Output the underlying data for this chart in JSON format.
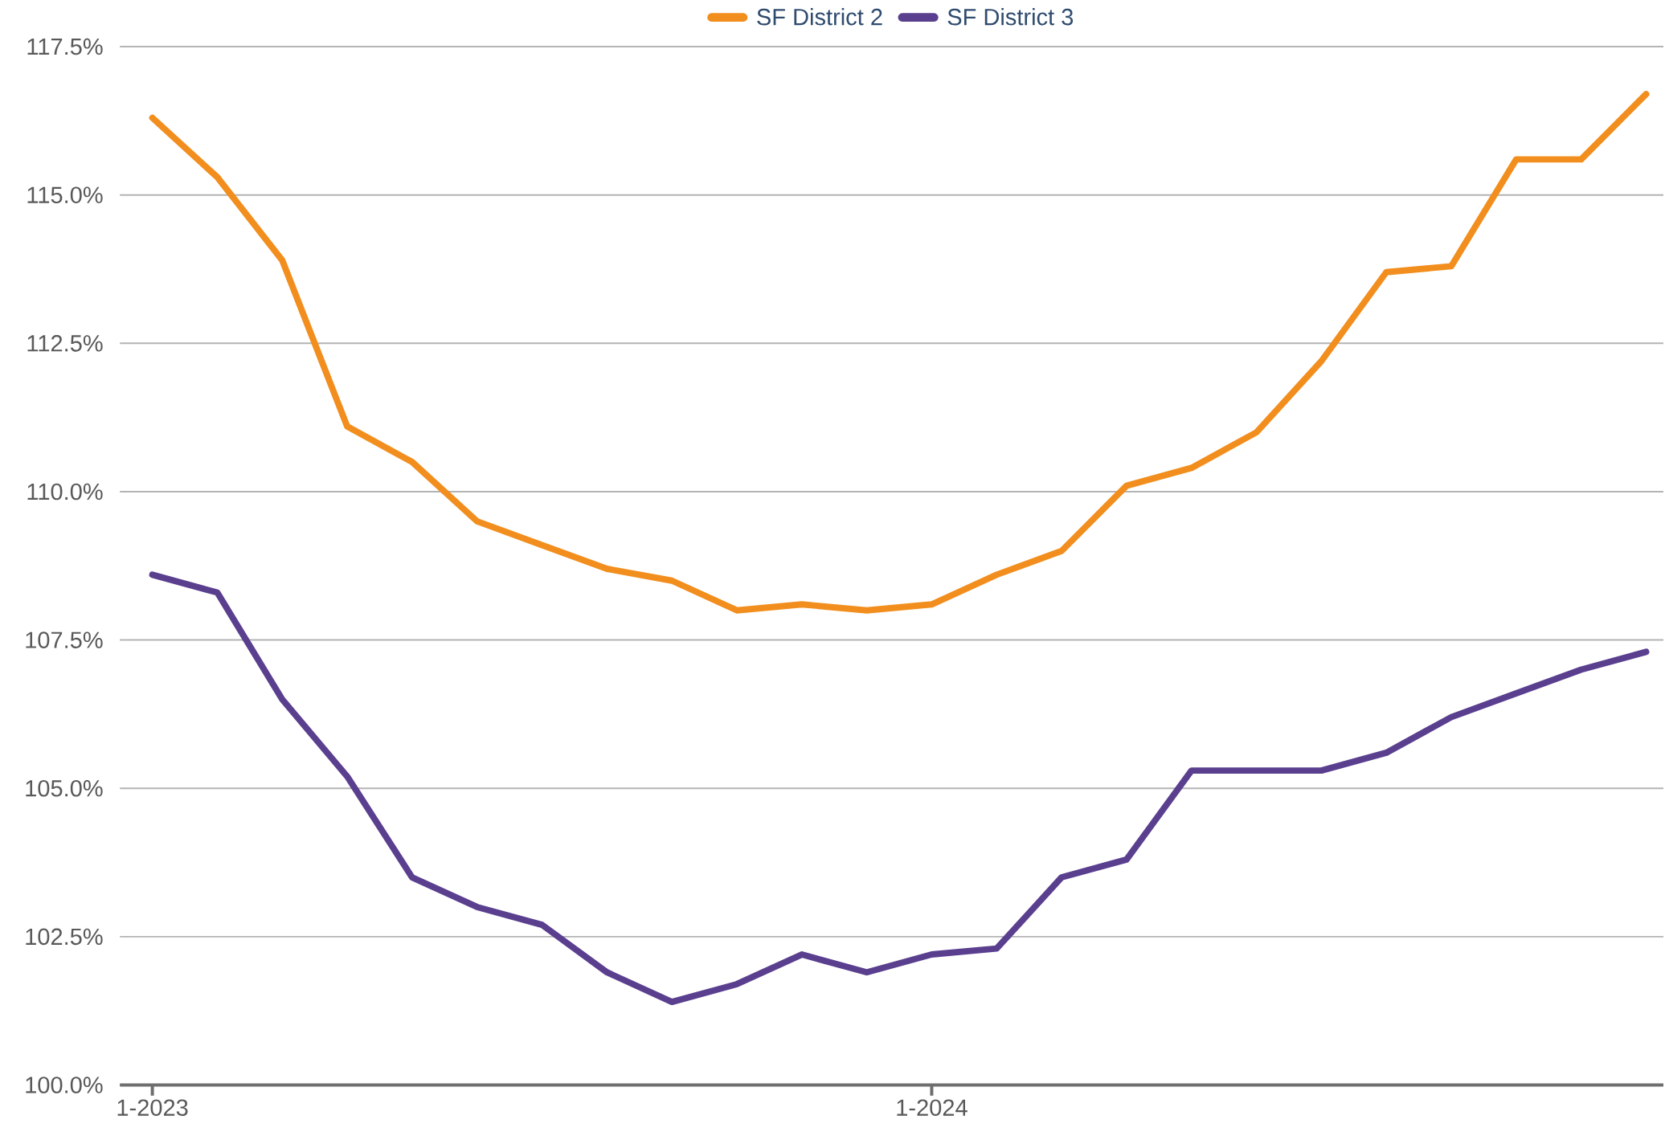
{
  "chart_data": {
    "type": "line",
    "x": [
      "2023-01",
      "2023-02",
      "2023-03",
      "2023-04",
      "2023-05",
      "2023-06",
      "2023-07",
      "2023-08",
      "2023-09",
      "2023-10",
      "2023-11",
      "2023-12",
      "2024-01",
      "2024-02",
      "2024-03",
      "2024-04",
      "2024-05",
      "2024-06",
      "2024-07",
      "2024-08",
      "2024-09",
      "2024-10",
      "2024-11",
      "2024-12"
    ],
    "series": [
      {
        "name": "SF District 2",
        "color": "#f28e1e",
        "values": [
          116.3,
          115.3,
          113.9,
          111.1,
          110.5,
          109.5,
          109.1,
          108.7,
          108.5,
          108.0,
          108.1,
          108.0,
          108.1,
          108.6,
          109.0,
          110.1,
          110.4,
          111.0,
          112.2,
          113.7,
          113.8,
          115.6,
          115.6,
          116.7
        ]
      },
      {
        "name": "SF District 3",
        "color": "#5a3f8f",
        "values": [
          108.6,
          108.3,
          106.5,
          105.2,
          103.5,
          103.0,
          102.7,
          101.9,
          101.4,
          101.7,
          102.2,
          101.9,
          102.2,
          102.3,
          103.5,
          103.8,
          105.3,
          105.3,
          105.3,
          105.6,
          106.2,
          106.6,
          107.0,
          107.3
        ]
      }
    ],
    "xlim": [
      "2022-12-16",
      "2024-12-09"
    ],
    "xticks": [
      {
        "value": "2023-01",
        "label": "1-2023"
      },
      {
        "value": "2024-01",
        "label": "1-2024"
      }
    ],
    "ylim": [
      100,
      117.5
    ],
    "yticks": [
      {
        "value": 100,
        "label": "100.0%"
      },
      {
        "value": 102.5,
        "label": "102.5%"
      },
      {
        "value": 105,
        "label": "105.0%"
      },
      {
        "value": 107.5,
        "label": "107.5%"
      },
      {
        "value": 110,
        "label": "110.0%"
      },
      {
        "value": 112.5,
        "label": "112.5%"
      },
      {
        "value": 115,
        "label": "115.0%"
      },
      {
        "value": 117.5,
        "label": "117.5%"
      }
    ],
    "grid": "y",
    "legend": "top",
    "line_style": "solid"
  }
}
